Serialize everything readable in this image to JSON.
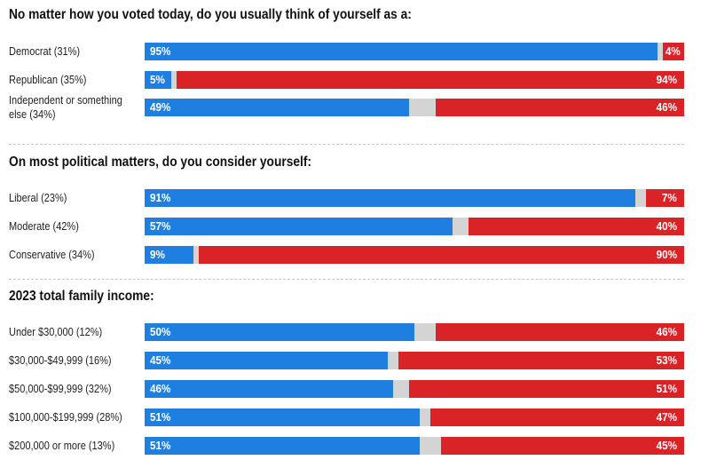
{
  "chart_data": [
    {
      "type": "bar",
      "title": "No matter how you voted today, do you usually think of yourself as a:",
      "categories": [
        "Democrat (31%)",
        "Republican (35%)",
        "Independent or something else (34%)"
      ],
      "series": [
        {
          "values": [
            95,
            5,
            49
          ]
        },
        {
          "values": [
            4,
            94,
            46
          ]
        }
      ],
      "dem_labels": [
        "95%",
        "5%",
        "49%"
      ],
      "rep_labels": [
        "4%",
        "94%",
        "46%"
      ],
      "colors": [
        "#1f7fe0",
        "#d92326",
        "#d4d4d4"
      ]
    },
    {
      "type": "bar",
      "title": "On most political matters, do you consider yourself:",
      "categories": [
        "Liberal (23%)",
        "Moderate (42%)",
        "Conservative (34%)"
      ],
      "series": [
        {
          "values": [
            91,
            57,
            9
          ]
        },
        {
          "values": [
            7,
            40,
            90
          ]
        }
      ],
      "dem_labels": [
        "91%",
        "57%",
        "9%"
      ],
      "rep_labels": [
        "7%",
        "40%",
        "90%"
      ],
      "colors": [
        "#1f7fe0",
        "#d92326",
        "#d4d4d4"
      ]
    },
    {
      "type": "bar",
      "title": "2023 total family income:",
      "categories": [
        "Under $30,000 (12%)",
        "$30,000-$49,999 (16%)",
        "$50,000-$99,999 (32%)",
        "$100,000-$199,999 (28%)",
        "$200,000 or more (13%)"
      ],
      "series": [
        {
          "values": [
            50,
            45,
            46,
            51,
            51
          ]
        },
        {
          "values": [
            46,
            53,
            51,
            47,
            45
          ]
        }
      ],
      "dem_labels": [
        "50%",
        "45%",
        "46%",
        "51%",
        "51%"
      ],
      "rep_labels": [
        "46%",
        "53%",
        "51%",
        "47%",
        "45%"
      ],
      "colors": [
        "#1f7fe0",
        "#d92326",
        "#d4d4d4"
      ]
    }
  ]
}
